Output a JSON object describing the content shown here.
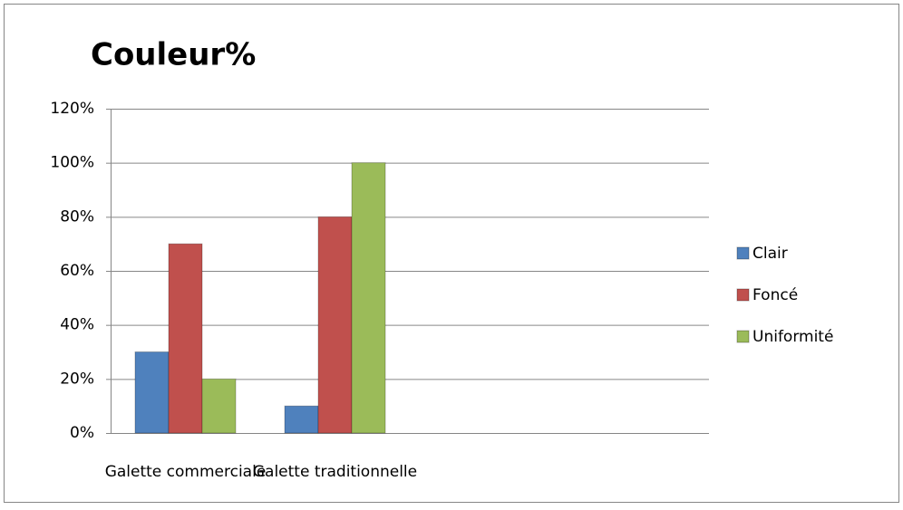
{
  "chart_data": {
    "type": "bar",
    "title": "Couleur%",
    "categories": [
      "Galette commerciale",
      "Galette traditionnelle",
      null,
      null
    ],
    "series": [
      {
        "name": "Clair",
        "color": "#4f81bd",
        "values": [
          30,
          10,
          null,
          null
        ]
      },
      {
        "name": "Foncé",
        "color": "#c0504d",
        "values": [
          70,
          80,
          null,
          null
        ]
      },
      {
        "name": "Uniformité",
        "color": "#9bbb59",
        "values": [
          20,
          100,
          null,
          null
        ]
      }
    ],
    "ylim": [
      0,
      120
    ],
    "yticks": [
      {
        "value": 0,
        "label": "0%"
      },
      {
        "value": 20,
        "label": "20%"
      },
      {
        "value": 40,
        "label": "40%"
      },
      {
        "value": 60,
        "label": "60%"
      },
      {
        "value": 80,
        "label": "80%"
      },
      {
        "value": 100,
        "label": "100%"
      },
      {
        "value": 120,
        "label": "120%"
      }
    ],
    "grid": true,
    "legend": "right"
  }
}
